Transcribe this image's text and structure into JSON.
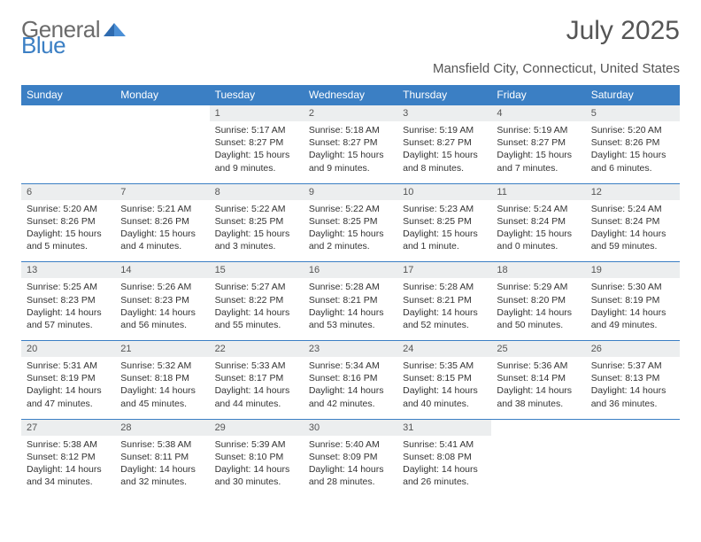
{
  "logo": {
    "part1": "General",
    "part2": "Blue"
  },
  "title": "July 2025",
  "subtitle": "Mansfield City, Connecticut, United States",
  "colors": {
    "header_bg": "#3b7fc4",
    "header_text": "#ffffff",
    "daynum_bg": "#eceeef",
    "border": "#3b7fc4",
    "page_bg": "#ffffff",
    "text": "#333333",
    "title_text": "#555555"
  },
  "dow": [
    "Sunday",
    "Monday",
    "Tuesday",
    "Wednesday",
    "Thursday",
    "Friday",
    "Saturday"
  ],
  "weeks": [
    {
      "nums": [
        "",
        "",
        "1",
        "2",
        "3",
        "4",
        "5"
      ],
      "cells": [
        null,
        null,
        {
          "sunrise": "Sunrise: 5:17 AM",
          "sunset": "Sunset: 8:27 PM",
          "day1": "Daylight: 15 hours",
          "day2": "and 9 minutes."
        },
        {
          "sunrise": "Sunrise: 5:18 AM",
          "sunset": "Sunset: 8:27 PM",
          "day1": "Daylight: 15 hours",
          "day2": "and 9 minutes."
        },
        {
          "sunrise": "Sunrise: 5:19 AM",
          "sunset": "Sunset: 8:27 PM",
          "day1": "Daylight: 15 hours",
          "day2": "and 8 minutes."
        },
        {
          "sunrise": "Sunrise: 5:19 AM",
          "sunset": "Sunset: 8:27 PM",
          "day1": "Daylight: 15 hours",
          "day2": "and 7 minutes."
        },
        {
          "sunrise": "Sunrise: 5:20 AM",
          "sunset": "Sunset: 8:26 PM",
          "day1": "Daylight: 15 hours",
          "day2": "and 6 minutes."
        }
      ]
    },
    {
      "nums": [
        "6",
        "7",
        "8",
        "9",
        "10",
        "11",
        "12"
      ],
      "cells": [
        {
          "sunrise": "Sunrise: 5:20 AM",
          "sunset": "Sunset: 8:26 PM",
          "day1": "Daylight: 15 hours",
          "day2": "and 5 minutes."
        },
        {
          "sunrise": "Sunrise: 5:21 AM",
          "sunset": "Sunset: 8:26 PM",
          "day1": "Daylight: 15 hours",
          "day2": "and 4 minutes."
        },
        {
          "sunrise": "Sunrise: 5:22 AM",
          "sunset": "Sunset: 8:25 PM",
          "day1": "Daylight: 15 hours",
          "day2": "and 3 minutes."
        },
        {
          "sunrise": "Sunrise: 5:22 AM",
          "sunset": "Sunset: 8:25 PM",
          "day1": "Daylight: 15 hours",
          "day2": "and 2 minutes."
        },
        {
          "sunrise": "Sunrise: 5:23 AM",
          "sunset": "Sunset: 8:25 PM",
          "day1": "Daylight: 15 hours",
          "day2": "and 1 minute."
        },
        {
          "sunrise": "Sunrise: 5:24 AM",
          "sunset": "Sunset: 8:24 PM",
          "day1": "Daylight: 15 hours",
          "day2": "and 0 minutes."
        },
        {
          "sunrise": "Sunrise: 5:24 AM",
          "sunset": "Sunset: 8:24 PM",
          "day1": "Daylight: 14 hours",
          "day2": "and 59 minutes."
        }
      ]
    },
    {
      "nums": [
        "13",
        "14",
        "15",
        "16",
        "17",
        "18",
        "19"
      ],
      "cells": [
        {
          "sunrise": "Sunrise: 5:25 AM",
          "sunset": "Sunset: 8:23 PM",
          "day1": "Daylight: 14 hours",
          "day2": "and 57 minutes."
        },
        {
          "sunrise": "Sunrise: 5:26 AM",
          "sunset": "Sunset: 8:23 PM",
          "day1": "Daylight: 14 hours",
          "day2": "and 56 minutes."
        },
        {
          "sunrise": "Sunrise: 5:27 AM",
          "sunset": "Sunset: 8:22 PM",
          "day1": "Daylight: 14 hours",
          "day2": "and 55 minutes."
        },
        {
          "sunrise": "Sunrise: 5:28 AM",
          "sunset": "Sunset: 8:21 PM",
          "day1": "Daylight: 14 hours",
          "day2": "and 53 minutes."
        },
        {
          "sunrise": "Sunrise: 5:28 AM",
          "sunset": "Sunset: 8:21 PM",
          "day1": "Daylight: 14 hours",
          "day2": "and 52 minutes."
        },
        {
          "sunrise": "Sunrise: 5:29 AM",
          "sunset": "Sunset: 8:20 PM",
          "day1": "Daylight: 14 hours",
          "day2": "and 50 minutes."
        },
        {
          "sunrise": "Sunrise: 5:30 AM",
          "sunset": "Sunset: 8:19 PM",
          "day1": "Daylight: 14 hours",
          "day2": "and 49 minutes."
        }
      ]
    },
    {
      "nums": [
        "20",
        "21",
        "22",
        "23",
        "24",
        "25",
        "26"
      ],
      "cells": [
        {
          "sunrise": "Sunrise: 5:31 AM",
          "sunset": "Sunset: 8:19 PM",
          "day1": "Daylight: 14 hours",
          "day2": "and 47 minutes."
        },
        {
          "sunrise": "Sunrise: 5:32 AM",
          "sunset": "Sunset: 8:18 PM",
          "day1": "Daylight: 14 hours",
          "day2": "and 45 minutes."
        },
        {
          "sunrise": "Sunrise: 5:33 AM",
          "sunset": "Sunset: 8:17 PM",
          "day1": "Daylight: 14 hours",
          "day2": "and 44 minutes."
        },
        {
          "sunrise": "Sunrise: 5:34 AM",
          "sunset": "Sunset: 8:16 PM",
          "day1": "Daylight: 14 hours",
          "day2": "and 42 minutes."
        },
        {
          "sunrise": "Sunrise: 5:35 AM",
          "sunset": "Sunset: 8:15 PM",
          "day1": "Daylight: 14 hours",
          "day2": "and 40 minutes."
        },
        {
          "sunrise": "Sunrise: 5:36 AM",
          "sunset": "Sunset: 8:14 PM",
          "day1": "Daylight: 14 hours",
          "day2": "and 38 minutes."
        },
        {
          "sunrise": "Sunrise: 5:37 AM",
          "sunset": "Sunset: 8:13 PM",
          "day1": "Daylight: 14 hours",
          "day2": "and 36 minutes."
        }
      ]
    },
    {
      "nums": [
        "27",
        "28",
        "29",
        "30",
        "31",
        "",
        ""
      ],
      "cells": [
        {
          "sunrise": "Sunrise: 5:38 AM",
          "sunset": "Sunset: 8:12 PM",
          "day1": "Daylight: 14 hours",
          "day2": "and 34 minutes."
        },
        {
          "sunrise": "Sunrise: 5:38 AM",
          "sunset": "Sunset: 8:11 PM",
          "day1": "Daylight: 14 hours",
          "day2": "and 32 minutes."
        },
        {
          "sunrise": "Sunrise: 5:39 AM",
          "sunset": "Sunset: 8:10 PM",
          "day1": "Daylight: 14 hours",
          "day2": "and 30 minutes."
        },
        {
          "sunrise": "Sunrise: 5:40 AM",
          "sunset": "Sunset: 8:09 PM",
          "day1": "Daylight: 14 hours",
          "day2": "and 28 minutes."
        },
        {
          "sunrise": "Sunrise: 5:41 AM",
          "sunset": "Sunset: 8:08 PM",
          "day1": "Daylight: 14 hours",
          "day2": "and 26 minutes."
        },
        null,
        null
      ]
    }
  ]
}
